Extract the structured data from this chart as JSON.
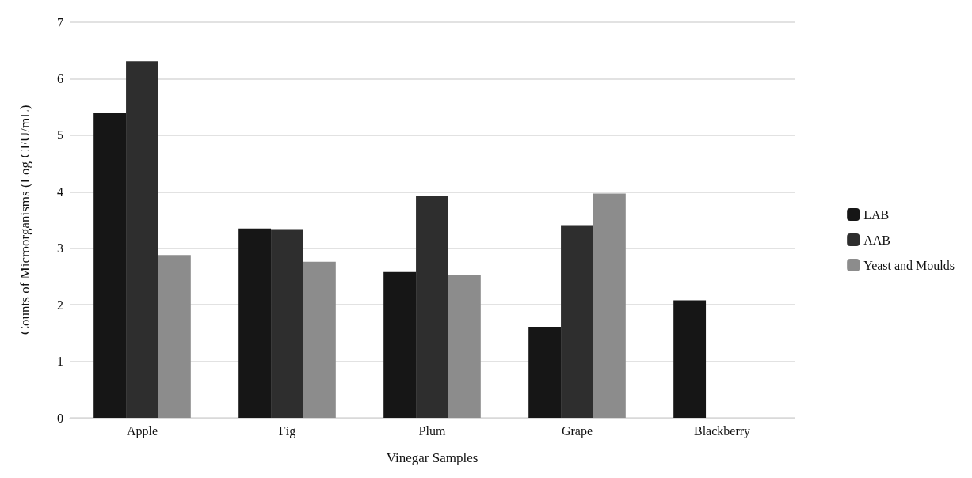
{
  "chart_data": {
    "type": "bar",
    "xlabel": "Vinegar Samples",
    "ylabel": "Counts of Microorganisms (Log CFU/mL)",
    "categories": [
      "Apple",
      "Fig",
      "Plum",
      "Grape",
      "Blackberry"
    ],
    "series": [
      {
        "name": "LAB",
        "color": "#161616",
        "values": [
          5.39,
          3.35,
          2.58,
          1.61,
          2.08
        ]
      },
      {
        "name": "AAB",
        "color": "#2e2e2e",
        "values": [
          6.31,
          3.34,
          3.92,
          3.41,
          null
        ]
      },
      {
        "name": "Yeast and Moulds",
        "color": "#8c8c8c",
        "values": [
          2.88,
          2.76,
          2.53,
          3.97,
          null
        ]
      }
    ],
    "ylim": [
      0,
      7
    ],
    "yticks": [
      0,
      1,
      2,
      3,
      4,
      5,
      6,
      7
    ],
    "grid": "y",
    "legend": "right"
  }
}
